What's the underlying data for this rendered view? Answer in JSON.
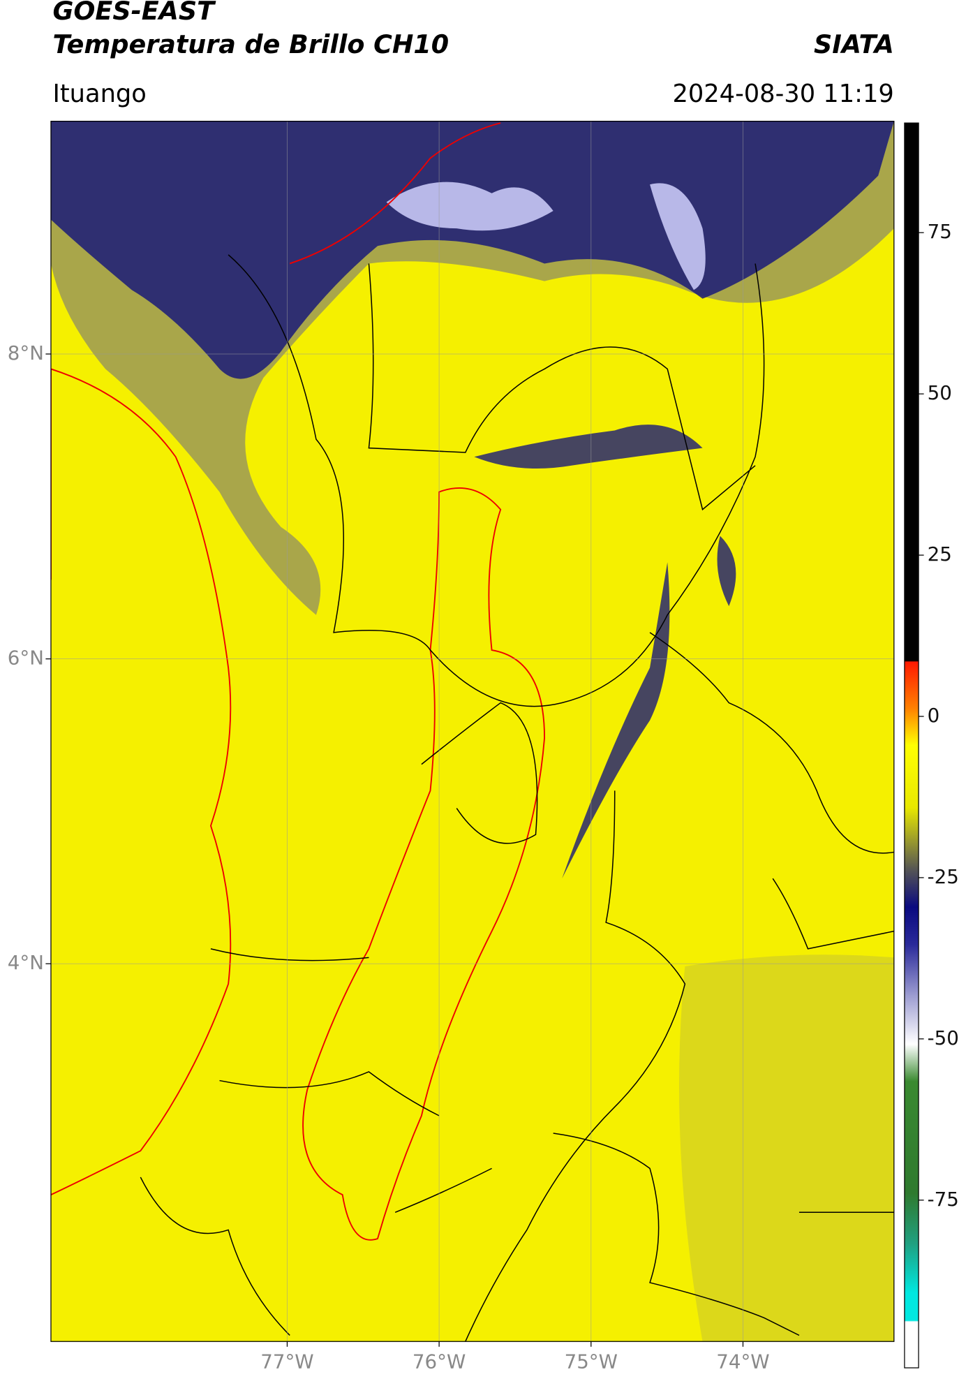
{
  "header": {
    "title": "GOES-EAST",
    "subtitle": "Temperatura de Brillo CH10",
    "source": "SIATA",
    "location": "Ituango",
    "datetime": "2024-08-30 11:19"
  },
  "map": {
    "xlim": [
      -78.555,
      -73.006
    ],
    "ylim": [
      1.522,
      9.527
    ],
    "xticks": [
      {
        "value": -77,
        "label": "77°W"
      },
      {
        "value": -76,
        "label": "76°W"
      },
      {
        "value": -75,
        "label": "75°W"
      },
      {
        "value": -74,
        "label": "74°W"
      }
    ],
    "yticks": [
      {
        "value": 4,
        "label": "4°N"
      },
      {
        "value": 6,
        "label": "6°N"
      },
      {
        "value": 8,
        "label": "8°N"
      }
    ],
    "grid": true
  },
  "colorbar": {
    "lim": [
      -101,
      92
    ],
    "ticks": [
      -75,
      -50,
      -25,
      0,
      25,
      50,
      75
    ]
  }
}
